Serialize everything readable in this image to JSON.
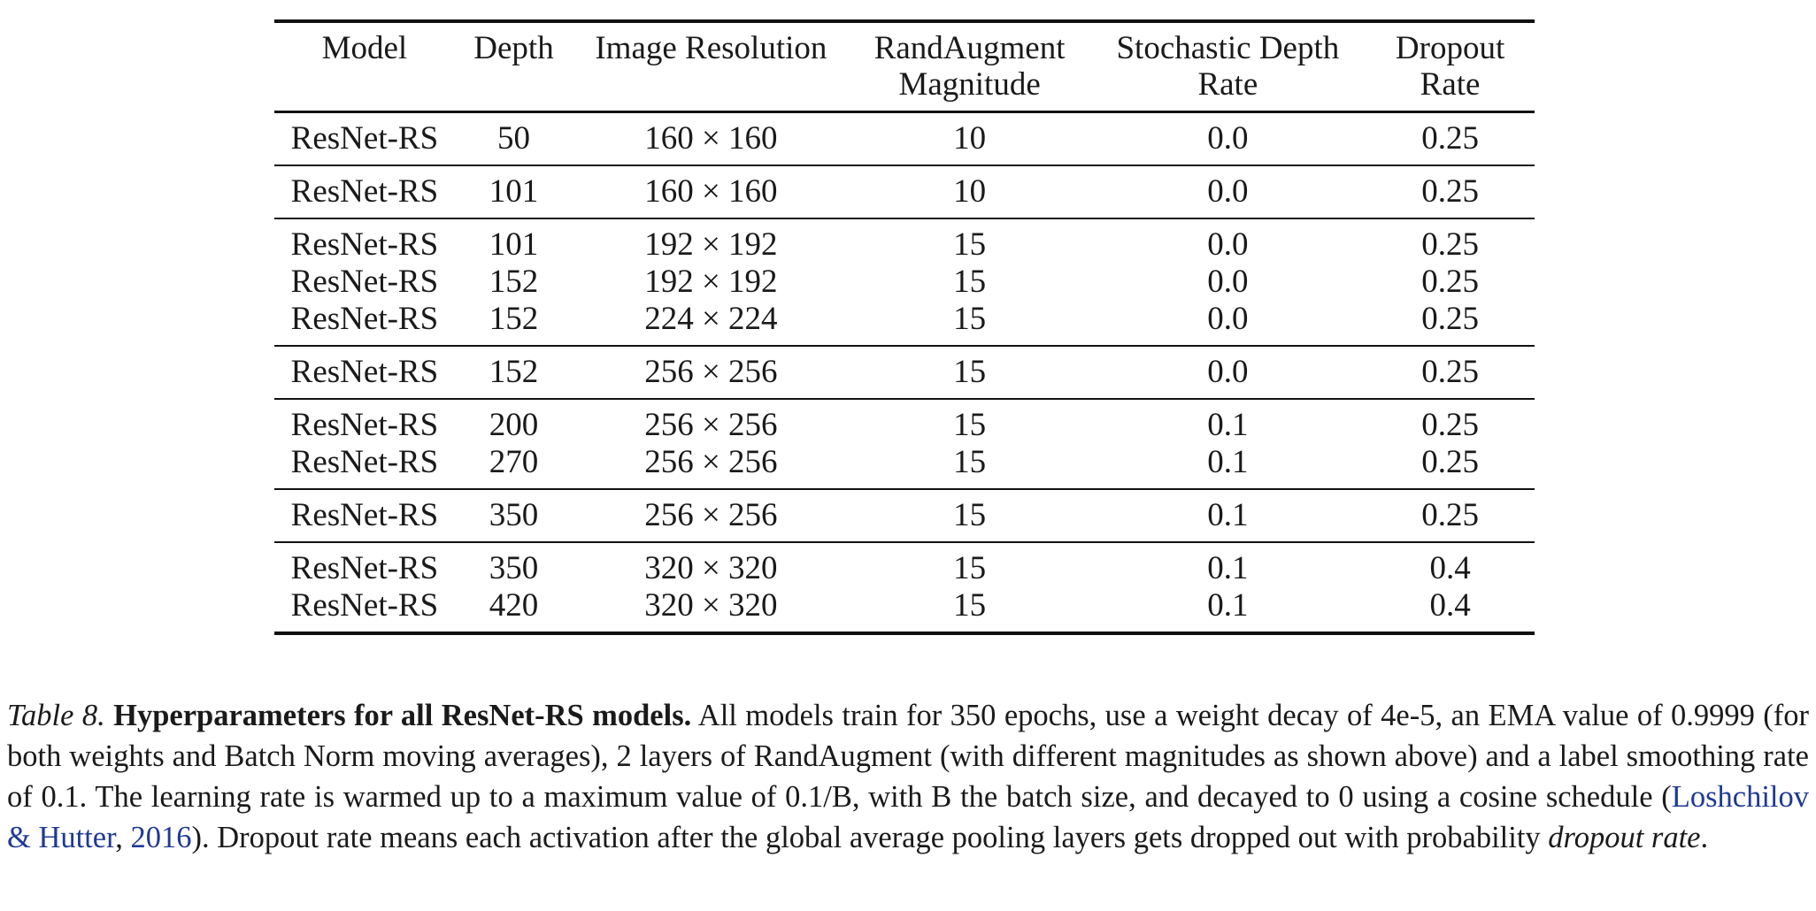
{
  "table": {
    "headers": [
      [
        "Model"
      ],
      [
        "Depth"
      ],
      [
        "Image Resolution"
      ],
      [
        "RandAugment",
        "Magnitude"
      ],
      [
        "Stochastic Depth",
        "Rate"
      ],
      [
        "Dropout",
        "Rate"
      ]
    ],
    "groups": [
      [
        [
          "ResNet-RS",
          "50",
          "160 × 160",
          "10",
          "0.0",
          "0.25"
        ]
      ],
      [
        [
          "ResNet-RS",
          "101",
          "160 × 160",
          "10",
          "0.0",
          "0.25"
        ]
      ],
      [
        [
          "ResNet-RS",
          "101",
          "192 × 192",
          "15",
          "0.0",
          "0.25"
        ],
        [
          "ResNet-RS",
          "152",
          "192 × 192",
          "15",
          "0.0",
          "0.25"
        ],
        [
          "ResNet-RS",
          "152",
          "224 × 224",
          "15",
          "0.0",
          "0.25"
        ]
      ],
      [
        [
          "ResNet-RS",
          "152",
          "256 × 256",
          "15",
          "0.0",
          "0.25"
        ]
      ],
      [
        [
          "ResNet-RS",
          "200",
          "256 × 256",
          "15",
          "0.1",
          "0.25"
        ],
        [
          "ResNet-RS",
          "270",
          "256 × 256",
          "15",
          "0.1",
          "0.25"
        ]
      ],
      [
        [
          "ResNet-RS",
          "350",
          "256 × 256",
          "15",
          "0.1",
          "0.25"
        ]
      ],
      [
        [
          "ResNet-RS",
          "350",
          "320 × 320",
          "15",
          "0.1",
          "0.4"
        ],
        [
          "ResNet-RS",
          "420",
          "320 × 320",
          "15",
          "0.1",
          "0.4"
        ]
      ]
    ]
  },
  "caption": {
    "label": "Table 8.",
    "title": "Hyperparameters for all ResNet-RS models.",
    "text_1": " All models train for 350 epochs, use a weight decay of 4e-5, an EMA value of 0.9999 (for both weights and Batch Norm moving averages), 2 layers of RandAugment (with different magnitudes as shown above) and a label smoothing rate of 0.1. The learning rate is warmed up to a maximum value of 0.1/B, with B the batch size, and decayed to 0 using a cosine schedule (",
    "citation": "Loshchilov & Hutter",
    "citation_sep": ", ",
    "citation_year": "2016",
    "text_2": "). Dropout rate means each activation after the global average pooling layers gets dropped out with probability ",
    "text_ital": "dropout rate",
    "text_end": "."
  }
}
